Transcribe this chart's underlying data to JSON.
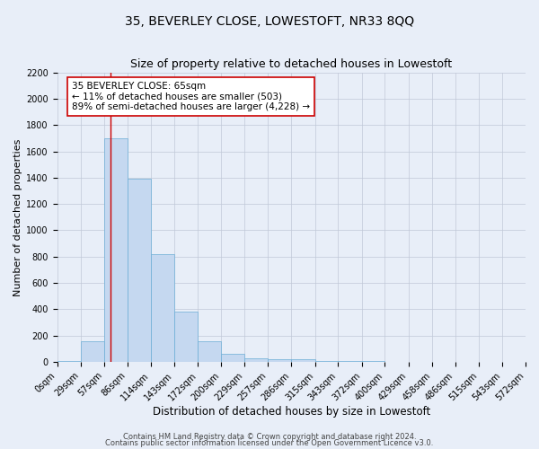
{
  "title": "35, BEVERLEY CLOSE, LOWESTOFT, NR33 8QQ",
  "subtitle": "Size of property relative to detached houses in Lowestoft",
  "xlabel": "Distribution of detached houses by size in Lowestoft",
  "ylabel": "Number of detached properties",
  "bin_edges": [
    0,
    29,
    57,
    86,
    114,
    143,
    172,
    200,
    229,
    257,
    286,
    315,
    343,
    372,
    400,
    429,
    458,
    486,
    515,
    543,
    572
  ],
  "bar_heights": [
    10,
    155,
    1700,
    1390,
    820,
    380,
    160,
    65,
    25,
    18,
    20,
    5,
    5,
    5,
    0,
    0,
    0,
    0,
    0,
    0
  ],
  "bar_color": "#c5d8f0",
  "bar_edgecolor": "#6baed6",
  "property_line_x": 65,
  "property_line_color": "#cc0000",
  "ylim": [
    0,
    2200
  ],
  "yticks": [
    0,
    200,
    400,
    600,
    800,
    1000,
    1200,
    1400,
    1600,
    1800,
    2000,
    2200
  ],
  "annotation_title": "35 BEVERLEY CLOSE: 65sqm",
  "annotation_line1": "← 11% of detached houses are smaller (503)",
  "annotation_line2": "89% of semi-detached houses are larger (4,228) →",
  "annotation_box_color": "#ffffff",
  "annotation_box_edgecolor": "#cc0000",
  "grid_color": "#c0c8d8",
  "bg_color": "#e8eef8",
  "footer1": "Contains HM Land Registry data © Crown copyright and database right 2024.",
  "footer2": "Contains public sector information licensed under the Open Government Licence v3.0.",
  "title_fontsize": 10,
  "subtitle_fontsize": 9,
  "xlabel_fontsize": 8.5,
  "ylabel_fontsize": 8,
  "tick_fontsize": 7,
  "annotation_fontsize": 7.5,
  "footer_fontsize": 6
}
